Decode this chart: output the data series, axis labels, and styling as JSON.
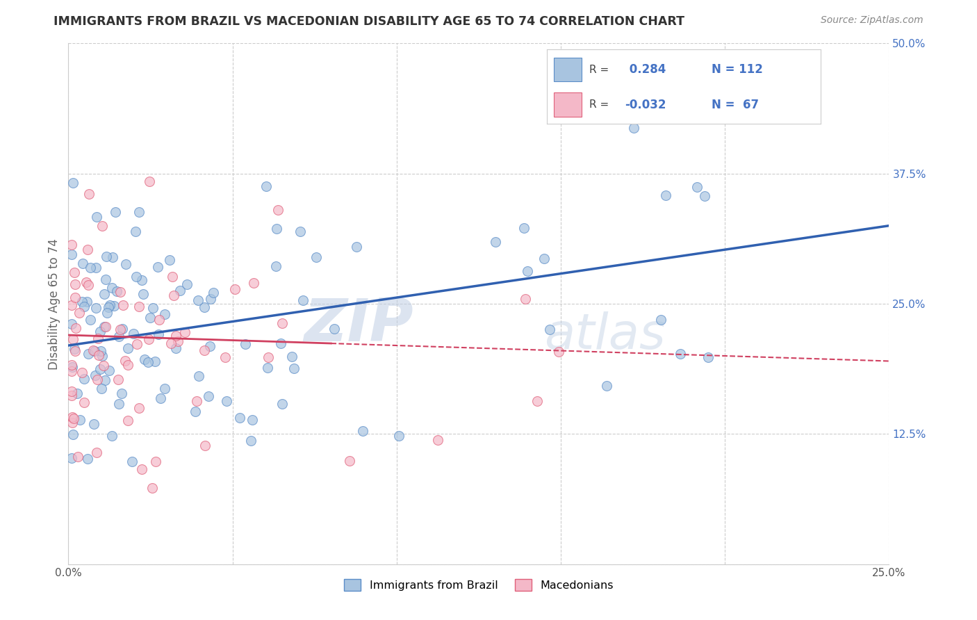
{
  "title": "IMMIGRANTS FROM BRAZIL VS MACEDONIAN DISABILITY AGE 65 TO 74 CORRELATION CHART",
  "source": "Source: ZipAtlas.com",
  "xlabel_brazil": "Immigrants from Brazil",
  "xlabel_macedonians": "Macedonians",
  "ylabel": "Disability Age 65 to 74",
  "r_brazil": 0.284,
  "n_brazil": 112,
  "r_macedonians": -0.032,
  "n_macedonians": 67,
  "xlim": [
    0.0,
    0.25
  ],
  "ylim": [
    0.0,
    0.5
  ],
  "xticks": [
    0.0,
    0.05,
    0.1,
    0.15,
    0.2,
    0.25
  ],
  "yticks": [
    0.0,
    0.125,
    0.25,
    0.375,
    0.5
  ],
  "color_brazil": "#a8c4e0",
  "color_macedonia": "#f4b8c8",
  "edge_brazil": "#5b8dc8",
  "edge_macedonia": "#e0607a",
  "trendline_brazil": "#3060b0",
  "trendline_macedonia": "#d04060",
  "background_color": "#ffffff",
  "watermark": "ZIP atlas",
  "watermark_color": "#c8d8ec"
}
